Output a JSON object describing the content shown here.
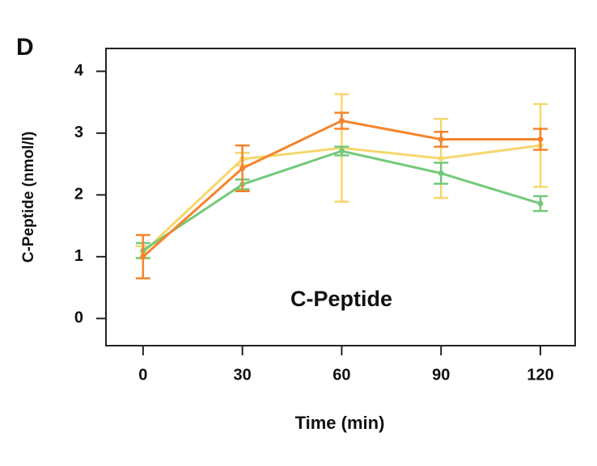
{
  "chart_data": {
    "type": "line",
    "panel_label": "D",
    "annotation": "C-Peptide",
    "x_label": "Time (min)",
    "y_label": "C-Peptide (nmol/l)",
    "x": [
      0,
      30,
      60,
      90,
      120
    ],
    "xlim": [
      -11.2,
      130.5
    ],
    "xticks": [
      0,
      30,
      60,
      90,
      120
    ],
    "ylim": [
      -0.44,
      4.37
    ],
    "yticks": [
      0,
      1,
      2,
      3,
      4
    ],
    "series": [
      {
        "color": "#f5d76e",
        "values": [
          1.07,
          2.58,
          2.76,
          2.59,
          2.8
        ],
        "errors": [
          0.1,
          0.1,
          0.87,
          0.64,
          0.67
        ]
      },
      {
        "color": "#74c97a",
        "values": [
          1.1,
          2.17,
          2.71,
          2.35,
          1.86
        ],
        "errors": [
          0.12,
          0.08,
          0.07,
          0.17,
          0.12
        ]
      },
      {
        "color": "#f5842a",
        "values": [
          1.0,
          2.43,
          3.2,
          2.9,
          2.9
        ],
        "errors": [
          0.35,
          0.37,
          0.13,
          0.12,
          0.17
        ]
      }
    ]
  }
}
